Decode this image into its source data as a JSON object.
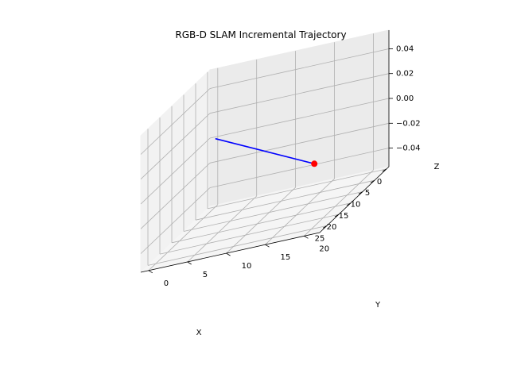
{
  "chart_data": {
    "type": "line",
    "title": "RGB-D SLAM Incremental Trajectory",
    "xlabel": "X",
    "ylabel": "Y",
    "zlabel": "Z",
    "xlim": [
      -1,
      28
    ],
    "ylim": [
      -1,
      22
    ],
    "zlim": [
      -0.055,
      0.055
    ],
    "xticks": [
      0,
      5,
      10,
      15,
      20,
      25
    ],
    "yticks": [
      0,
      5,
      10,
      15,
      20
    ],
    "zticks": [
      -0.04,
      -0.02,
      0.0,
      0.02,
      0.04
    ],
    "xtick_labels": [
      "0",
      "5",
      "10",
      "15",
      "20",
      "25"
    ],
    "ytick_labels": [
      "0",
      "5",
      "10",
      "15",
      "20"
    ],
    "ztick_labels": [
      "−0.04",
      "−0.02",
      "0.00",
      "0.02",
      "0.04"
    ],
    "grid": true,
    "series": [
      {
        "type": "line",
        "color": "#0000ff",
        "points": [
          {
            "x": 0,
            "y": 0,
            "z": 0
          },
          {
            "x": 27,
            "y": 21,
            "z": 0
          }
        ]
      },
      {
        "type": "marker",
        "color": "#ff0000",
        "points": [
          {
            "x": 27,
            "y": 21,
            "z": 0
          }
        ]
      }
    ]
  }
}
